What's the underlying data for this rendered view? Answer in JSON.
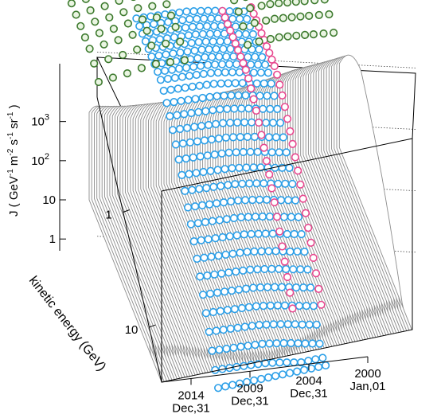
{
  "chart_data": {
    "type": "surface-3d",
    "title": "",
    "zlabel": "J ( GeV⁻¹ m⁻² s⁻¹ sr⁻¹ )",
    "zlabel_parts": [
      "J ( GeV",
      "-1",
      " m",
      "-2",
      " s",
      "-1",
      " sr",
      "-1",
      " )"
    ],
    "ylabel": "kinetic energy (GeV)",
    "z_scale": "log",
    "z_range": [
      0.5,
      30000
    ],
    "z_ticks": [
      {
        "label": "1",
        "value": 1
      },
      {
        "label": "10",
        "value": 10
      },
      {
        "label": "10",
        "exp": "2",
        "value": 100
      },
      {
        "label": "10",
        "exp": "3",
        "value": 1000
      }
    ],
    "y_scale": "log",
    "y_range": [
      0.1,
      30
    ],
    "y_ticks": [
      {
        "label": "1",
        "value": 1
      },
      {
        "label": "10",
        "value": 10
      }
    ],
    "time_ticks": [
      {
        "line1": "2000",
        "line2": "Jan,01",
        "year": 2000.0
      },
      {
        "line1": "2004",
        "line2": "Dec,31",
        "year": 2005.0
      },
      {
        "line1": "2009",
        "line2": "Dec,31",
        "year": 2010.0
      },
      {
        "line1": "2014",
        "line2": "Dec,31",
        "year": 2015.0
      }
    ],
    "time_range": [
      2000.0,
      2017.5
    ],
    "surface": {
      "color": "#8c8c8c",
      "peak_energy_gev": [
        0.55,
        0.6,
        0.65,
        0.75,
        0.9,
        1.0,
        0.9,
        0.75,
        0.6,
        0.5
      ],
      "peak_flux": [
        1100,
        1150,
        1250,
        1350,
        1600,
        1900,
        1700,
        1300,
        1000,
        1000
      ],
      "spectral_index": 2.7
    },
    "series": [
      {
        "marker_color": "#2b9fe8",
        "times": [
          2006.5,
          2007.0,
          2007.5,
          2008.0,
          2008.5,
          2009.0,
          2009.5,
          2010.0,
          2010.5,
          2011.0,
          2011.5,
          2012.0,
          2012.5,
          2013.0,
          2013.5,
          2014.0
        ],
        "energy_range_gev": [
          0.08,
          50
        ],
        "flux_peak": [
          3000,
          3300,
          3600,
          4000,
          4400,
          4800,
          5200,
          5600,
          6000,
          6200,
          6400,
          6600,
          6800,
          7000,
          7200,
          7400
        ]
      },
      {
        "marker_color": "#e8488f",
        "times": [
          2008.0,
          2006.0
        ],
        "energy_range_gev": [
          0.08,
          20
        ],
        "flux_peak": [
          4000,
          3500
        ]
      },
      {
        "marker_color": "#3d7a2e",
        "marker_fill": "#eaf5e2",
        "times": [
          2000.6,
          2001.3,
          2002.0,
          2002.6,
          2003.2,
          2003.8,
          2004.4,
          2005.0,
          2005.8,
          2006.6,
          2011.0,
          2012.0,
          2013.0,
          2014.0,
          2015.0,
          2016.0,
          2017.0
        ],
        "energy_range_gev": [
          0.01,
          0.12
        ],
        "flux_peak": [
          1200,
          1300,
          1400,
          1500,
          1600,
          1700,
          1800,
          1800,
          1800,
          1700,
          1500,
          1600,
          1700,
          1600,
          1400,
          1300,
          1200
        ]
      }
    ]
  }
}
